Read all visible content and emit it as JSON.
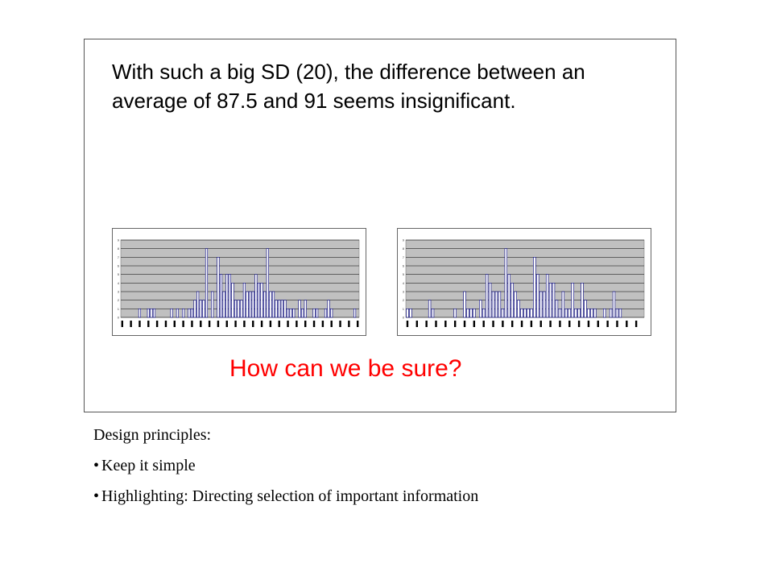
{
  "slide": {
    "headline": "With such a big SD (20), the difference between an average of 87.5 and 91 seems insignificant.",
    "callout": "How can we be sure?"
  },
  "notes": {
    "heading": "Design principles:",
    "bullet_char": "•",
    "items": [
      "Keep it simple",
      "Highlighting: Directing selection of important information"
    ]
  },
  "colors": {
    "callout": "#ff0000",
    "bar_fill": "#ffffff",
    "bar_stroke": "#000080",
    "plot_area": "#c0c0c0"
  },
  "chart_data": [
    {
      "type": "bar",
      "ylim": [
        0,
        9
      ],
      "grid": true,
      "values": [
        0,
        0,
        0,
        0,
        0,
        0,
        1,
        0,
        0,
        1,
        1,
        1,
        0,
        0,
        0,
        0,
        0,
        1,
        0,
        1,
        0,
        1,
        0,
        1,
        1,
        2,
        3,
        2,
        2,
        8,
        0,
        3,
        0,
        7,
        5,
        3,
        5,
        5,
        4,
        2,
        2,
        2,
        4,
        3,
        3,
        3,
        5,
        4,
        4,
        3,
        8,
        3,
        3,
        2,
        2,
        2,
        2,
        1,
        1,
        1,
        0,
        2,
        1,
        2,
        0,
        0,
        1,
        1,
        0,
        0,
        1,
        2,
        1,
        0,
        0,
        0,
        0,
        0,
        0,
        0,
        1,
        0
      ]
    },
    {
      "type": "bar",
      "ylim": [
        0,
        9
      ],
      "grid": true,
      "values": [
        1,
        1,
        0,
        0,
        0,
        0,
        0,
        2,
        1,
        0,
        0,
        0,
        0,
        0,
        0,
        1,
        0,
        0,
        3,
        1,
        1,
        1,
        0,
        2,
        1,
        5,
        4,
        3,
        3,
        3,
        1,
        8,
        5,
        4,
        3,
        2,
        1,
        1,
        1,
        1,
        7,
        5,
        3,
        3,
        5,
        4,
        4,
        2,
        1,
        3,
        1,
        1,
        4,
        1,
        1,
        4,
        2,
        1,
        1,
        1,
        0,
        0,
        1,
        0,
        1,
        3,
        1,
        1,
        0,
        0,
        0,
        0,
        0,
        0,
        0
      ]
    }
  ]
}
